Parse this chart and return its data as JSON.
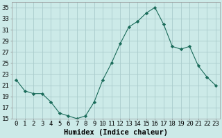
{
  "x": [
    0,
    1,
    2,
    3,
    4,
    5,
    6,
    7,
    8,
    9,
    10,
    11,
    12,
    13,
    14,
    15,
    16,
    17,
    18,
    19,
    20,
    21,
    22,
    23
  ],
  "y": [
    22,
    20,
    19.5,
    19.5,
    18,
    16,
    15.5,
    15,
    15.5,
    18,
    22,
    25,
    28.5,
    31.5,
    32.5,
    34,
    35,
    32,
    28,
    27.5,
    28,
    24.5,
    22.5,
    21
  ],
  "line_color": "#1a6b5a",
  "marker": "D",
  "marker_size": 2.2,
  "bg_color": "#cceae8",
  "grid_color": "#aacccc",
  "xlabel": "Humidex (Indice chaleur)",
  "ylabel": "",
  "xlim": [
    -0.5,
    23.5
  ],
  "ylim": [
    15,
    36
  ],
  "yticks": [
    15,
    17,
    19,
    21,
    23,
    25,
    27,
    29,
    31,
    33,
    35
  ],
  "xtick_labels": [
    "0",
    "1",
    "2",
    "3",
    "4",
    "5",
    "6",
    "7",
    "8",
    "9",
    "10",
    "11",
    "12",
    "13",
    "14",
    "15",
    "16",
    "17",
    "18",
    "19",
    "20",
    "21",
    "22",
    "23"
  ],
  "xlabel_fontsize": 7.5,
  "tick_fontsize": 6.5
}
